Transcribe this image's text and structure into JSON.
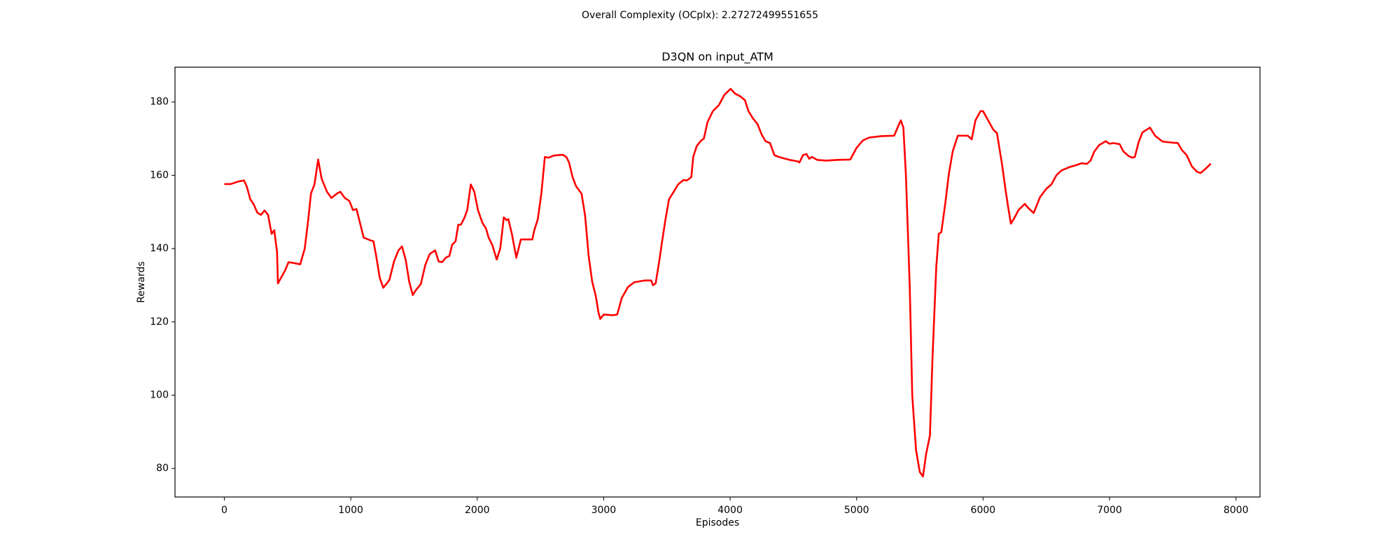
{
  "chart_data": {
    "type": "line",
    "subtitle": "Overall Complexity (OCplx): 2.27272499551655",
    "subtitle_color": "#ff0000",
    "title": "D3QN on input_ATM",
    "x_label": "Episodes",
    "y_label": "Rewards",
    "color": "#ff0000",
    "x": [
      0,
      50,
      110,
      155,
      177,
      205,
      233,
      261,
      290,
      318,
      346,
      374,
      395,
      417,
      424,
      480,
      508,
      558,
      600,
      636,
      664,
      685,
      713,
      742,
      770,
      812,
      847,
      890,
      918,
      953,
      989,
      1017,
      1045,
      1073,
      1102,
      1151,
      1179,
      1201,
      1229,
      1257,
      1285,
      1306,
      1342,
      1377,
      1405,
      1434,
      1462,
      1490,
      1518,
      1554,
      1589,
      1624,
      1667,
      1695,
      1723,
      1751,
      1780,
      1801,
      1829,
      1850,
      1871,
      1900,
      1921,
      1949,
      1977,
      2006,
      2041,
      2069,
      2090,
      2119,
      2154,
      2182,
      2210,
      2232,
      2246,
      2274,
      2309,
      2345,
      2394,
      2436,
      2451,
      2479,
      2507,
      2535,
      2564,
      2606,
      2677,
      2705,
      2726,
      2754,
      2782,
      2825,
      2853,
      2881,
      2909,
      2938,
      2959,
      2973,
      3001,
      3072,
      3107,
      3143,
      3192,
      3241,
      3326,
      3376,
      3390,
      3411,
      3439,
      3460,
      3489,
      3517,
      3545,
      3588,
      3630,
      3658,
      3693,
      3708,
      3736,
      3771,
      3792,
      3821,
      3863,
      3912,
      3955,
      4004,
      4039,
      4082,
      4117,
      4145,
      4181,
      4216,
      4251,
      4280,
      4315,
      4350,
      4385,
      4428,
      4470,
      4534,
      4548,
      4576,
      4604,
      4626,
      4647,
      4689,
      4760,
      4845,
      4950,
      5000,
      5049,
      5099,
      5198,
      5297,
      5330,
      5350,
      5370,
      5390,
      5420,
      5440,
      5470,
      5500,
      5525,
      5550,
      5580,
      5600,
      5630,
      5650,
      5670,
      5700,
      5730,
      5760,
      5800,
      5880,
      5910,
      5940,
      5980,
      6000,
      6040,
      6080,
      6110,
      6150,
      6180,
      6200,
      6220,
      6250,
      6280,
      6330,
      6360,
      6400,
      6450,
      6500,
      6540,
      6580,
      6620,
      6680,
      6740,
      6780,
      6820,
      6850,
      6880,
      6920,
      6970,
      7000,
      7030,
      7080,
      7110,
      7150,
      7180,
      7200,
      7230,
      7260,
      7310,
      7320,
      7360,
      7420,
      7500,
      7540,
      7570,
      7610,
      7650,
      7690,
      7720,
      7760,
      7790,
      7800
    ],
    "values": [
      157.6,
      157.6,
      158.3,
      158.6,
      157,
      153.5,
      152,
      149.8,
      149.2,
      150.4,
      149.2,
      144,
      145,
      139,
      130.5,
      134,
      136.3,
      136,
      135.7,
      140,
      148,
      155,
      157.5,
      164.3,
      159,
      155.5,
      153.8,
      155,
      155.5,
      153.8,
      153,
      150.5,
      150.8,
      147,
      143,
      142.3,
      142,
      138,
      132,
      129.3,
      130.5,
      131.5,
      136.5,
      139.5,
      140.6,
      137,
      131,
      127.3,
      128.8,
      130.3,
      135.5,
      138.5,
      139.5,
      136.5,
      136.3,
      137.5,
      138,
      141,
      142,
      146.5,
      146.5,
      148.5,
      150.5,
      157.5,
      155.5,
      150.5,
      147,
      145.5,
      143,
      141,
      137,
      140,
      148.5,
      147.8,
      148,
      144,
      137.5,
      142.5,
      142.5,
      142.5,
      145,
      148,
      155,
      165,
      164.8,
      165.4,
      165.6,
      165,
      163.5,
      159.5,
      157,
      155,
      149,
      138,
      131,
      127,
      122.5,
      120.8,
      122,
      121.8,
      122,
      126.5,
      129.5,
      130.8,
      131.3,
      131.3,
      130,
      130.5,
      136.5,
      141.5,
      148,
      153.5,
      155,
      157.5,
      158.7,
      158.6,
      159.5,
      165,
      168,
      169.5,
      170,
      174.5,
      177.5,
      179.2,
      182,
      183.6,
      182.3,
      181.5,
      180.5,
      177.5,
      175.5,
      174,
      171,
      169.3,
      168.8,
      165.5,
      165,
      164.6,
      164.2,
      163.8,
      163.5,
      165.5,
      165.8,
      164.5,
      165,
      164.2,
      164,
      164.2,
      164.3,
      167.5,
      169.5,
      170.3,
      170.7,
      170.8,
      173.5,
      175,
      173,
      160,
      130,
      100,
      85,
      79,
      77.8,
      84,
      89,
      110,
      135,
      144,
      144.5,
      152,
      160.5,
      166.5,
      170.8,
      170.8,
      169.8,
      175,
      177.5,
      177.5,
      175,
      172.5,
      171.5,
      163,
      155.5,
      151,
      146.8,
      148.5,
      150.5,
      152.2,
      151,
      149.7,
      154,
      156.3,
      157.5,
      160,
      161.3,
      162.2,
      162.8,
      163.3,
      163.1,
      164,
      166.5,
      168.3,
      169.3,
      168.6,
      168.8,
      168.5,
      166.5,
      165.3,
      164.8,
      165,
      169,
      171.7,
      172.8,
      173,
      170.8,
      169.2,
      168.9,
      168.8,
      167,
      165.5,
      162.5,
      161,
      160.6,
      161.8,
      162.8,
      163.2
    ],
    "xlim": [
      -390,
      8190
    ],
    "ylim": [
      72.2,
      189.5
    ],
    "xticks": [
      0,
      1000,
      2000,
      3000,
      4000,
      5000,
      6000,
      7000,
      8000
    ],
    "yticks": [
      80,
      100,
      120,
      140,
      160,
      180
    ]
  }
}
